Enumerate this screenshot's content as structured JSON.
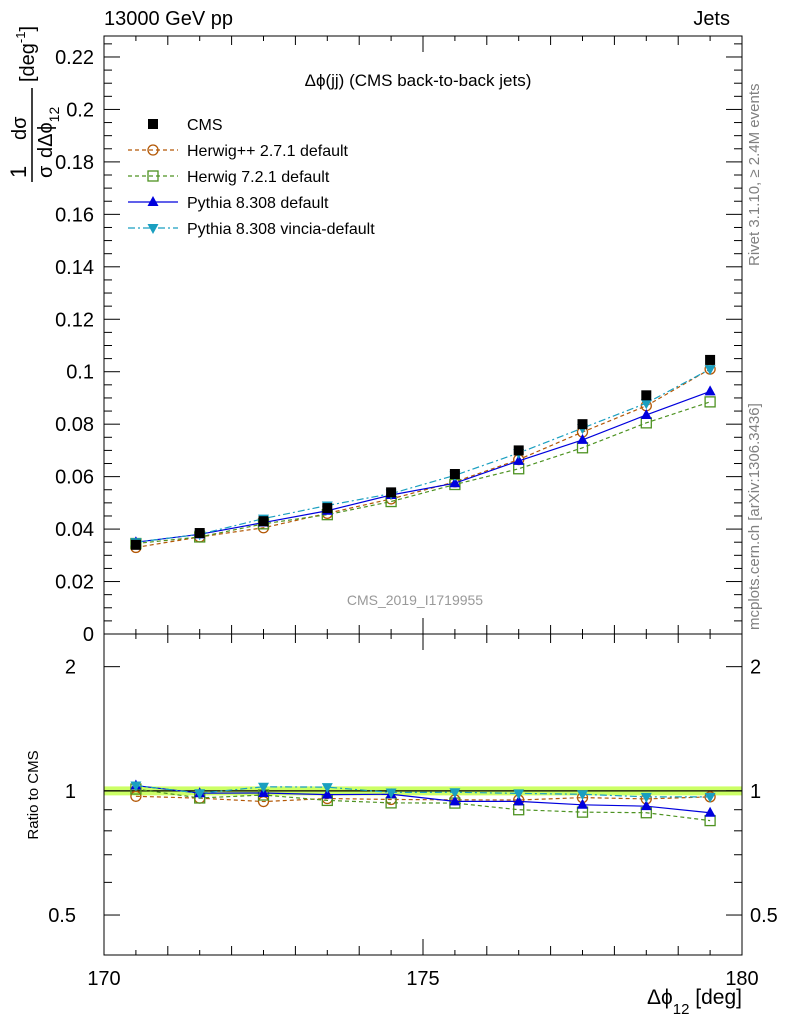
{
  "header": {
    "left": "13000 GeV pp",
    "right": "Jets"
  },
  "side_labels": {
    "rivet": "Rivet 3.1.10, ≥ 2.4M events",
    "mcplots": "mcplots.cern.ch [arXiv:1306.3436]"
  },
  "chart_data": [
    {
      "type": "line",
      "title": "Δϕ(jj) (CMS back-to-back jets)",
      "watermark": "CMS_2019_I1719955",
      "ylabel_parts": {
        "frac_num": "1",
        "num": "dσ",
        "den_left": "σ",
        "den_right": "dΔϕ",
        "sub": "12",
        "unit_open": "[deg",
        "unit_sup": "-1",
        "unit_close": "]"
      },
      "xlim": [
        170,
        180
      ],
      "ylim": [
        0,
        0.228
      ],
      "yticks": [
        "0",
        "0.02",
        "0.04",
        "0.06",
        "0.08",
        "0.1",
        "0.12",
        "0.14",
        "0.16",
        "0.18",
        "0.2",
        "0.22"
      ],
      "ytick_values": [
        0,
        0.02,
        0.04,
        0.06,
        0.08,
        0.1,
        0.12,
        0.14,
        0.16,
        0.18,
        0.2,
        0.22
      ],
      "legend_position": "top-left",
      "x": [
        170.5,
        171.5,
        172.5,
        173.5,
        174.5,
        175.5,
        176.5,
        177.5,
        178.5,
        179.5
      ],
      "series": [
        {
          "name": "CMS",
          "color": "#000000",
          "marker": "filled-square",
          "dash": "none",
          "values": [
            0.034,
            0.0385,
            0.043,
            0.048,
            0.054,
            0.061,
            0.07,
            0.08,
            0.091,
            0.1045
          ]
        },
        {
          "name": "Herwig++ 2.7.1 default",
          "color": "#b35806",
          "marker": "open-circle",
          "dash": "dashed",
          "values": [
            0.033,
            0.037,
            0.0405,
            0.046,
            0.0515,
            0.058,
            0.0665,
            0.077,
            0.087,
            0.101
          ]
        },
        {
          "name": "Herwig 7.2.1 default",
          "color": "#4d9221",
          "marker": "open-square",
          "dash": "dashed",
          "values": [
            0.0345,
            0.037,
            0.042,
            0.0455,
            0.0505,
            0.057,
            0.063,
            0.071,
            0.0805,
            0.0885
          ]
        },
        {
          "name": "Pythia 8.308 default",
          "color": "#0000dd",
          "marker": "filled-triangle-up",
          "dash": "solid",
          "values": [
            0.035,
            0.038,
            0.0425,
            0.047,
            0.053,
            0.0575,
            0.066,
            0.074,
            0.0835,
            0.0925
          ]
        },
        {
          "name": "Pythia 8.308 vincia-default",
          "color": "#1a9fc0",
          "marker": "filled-triangle-down",
          "dash": "dashdot",
          "values": [
            0.035,
            0.038,
            0.044,
            0.049,
            0.0535,
            0.0605,
            0.069,
            0.0785,
            0.088,
            0.101
          ]
        }
      ]
    },
    {
      "type": "line",
      "ylabel": "Ratio to CMS",
      "xlabel_parts": {
        "main": "Δϕ",
        "sub": "12",
        "unit": " [deg]"
      },
      "xlim": [
        170,
        180
      ],
      "xticks": [
        "170",
        "175",
        "180"
      ],
      "xtick_values": [
        170,
        175,
        180
      ],
      "ylim": [
        0.4,
        2.4
      ],
      "ylog": true,
      "yticks": [
        "0.5",
        "1",
        "2"
      ],
      "ytick_values": [
        0.5,
        1,
        2
      ],
      "reference_band": {
        "value": 1,
        "lower": 0.975,
        "upper": 1.025,
        "color": "#ccff66"
      },
      "x": [
        170.5,
        171.5,
        172.5,
        173.5,
        174.5,
        175.5,
        176.5,
        177.5,
        178.5,
        179.5
      ],
      "series": [
        {
          "name": "Herwig++ 2.7.1 default",
          "color": "#b35806",
          "marker": "open-circle",
          "dash": "dashed",
          "values": [
            0.97,
            0.96,
            0.942,
            0.958,
            0.953,
            0.951,
            0.95,
            0.963,
            0.956,
            0.967
          ]
        },
        {
          "name": "Herwig 7.2.1 default",
          "color": "#4d9221",
          "marker": "open-square",
          "dash": "dashed",
          "values": [
            1.01,
            0.961,
            0.977,
            0.948,
            0.935,
            0.934,
            0.9,
            0.888,
            0.885,
            0.847
          ]
        },
        {
          "name": "Pythia 8.308 default",
          "color": "#0000dd",
          "marker": "filled-triangle-up",
          "dash": "solid",
          "values": [
            1.03,
            0.987,
            0.988,
            0.979,
            0.981,
            0.943,
            0.943,
            0.925,
            0.918,
            0.885
          ]
        },
        {
          "name": "Pythia 8.308 vincia-default",
          "color": "#1a9fc0",
          "marker": "filled-triangle-down",
          "dash": "dashdot",
          "values": [
            1.03,
            0.987,
            1.023,
            1.021,
            0.991,
            0.992,
            0.986,
            0.981,
            0.967,
            0.967
          ]
        }
      ]
    }
  ]
}
